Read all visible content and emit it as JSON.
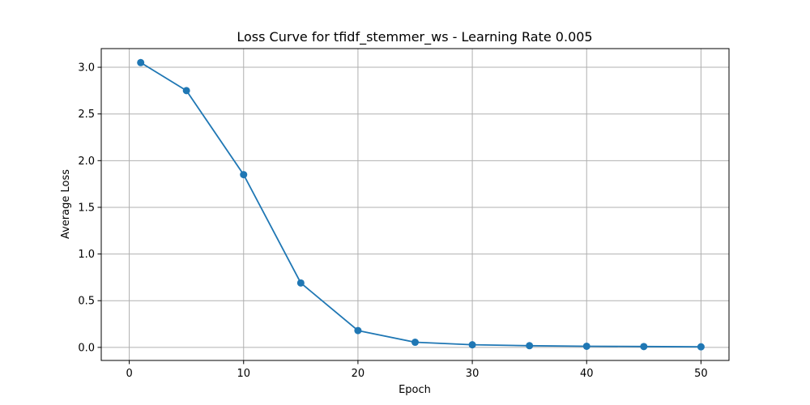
{
  "chart_data": {
    "type": "line",
    "title": "Loss Curve for tfidf_stemmer_ws - Learning Rate 0.005",
    "xlabel": "Epoch",
    "ylabel": "Average Loss",
    "xlim": [
      -2.45,
      52.45
    ],
    "ylim": [
      -0.14,
      3.2
    ],
    "xticks": [
      0,
      10,
      20,
      30,
      40,
      50
    ],
    "xtick_labels": [
      "0",
      "10",
      "20",
      "30",
      "40",
      "50"
    ],
    "yticks": [
      0.0,
      0.5,
      1.0,
      1.5,
      2.0,
      2.5,
      3.0
    ],
    "ytick_labels": [
      "0.0",
      "0.5",
      "1.0",
      "1.5",
      "2.0",
      "2.5",
      "3.0"
    ],
    "grid": true,
    "marker": "circle",
    "series": [
      {
        "color": "#1f77b4",
        "x": [
          1,
          5,
          10,
          15,
          20,
          25,
          30,
          35,
          40,
          45,
          50
        ],
        "y": [
          3.05,
          2.75,
          1.85,
          0.69,
          0.18,
          0.055,
          0.028,
          0.018,
          0.012,
          0.009,
          0.006
        ]
      }
    ]
  }
}
